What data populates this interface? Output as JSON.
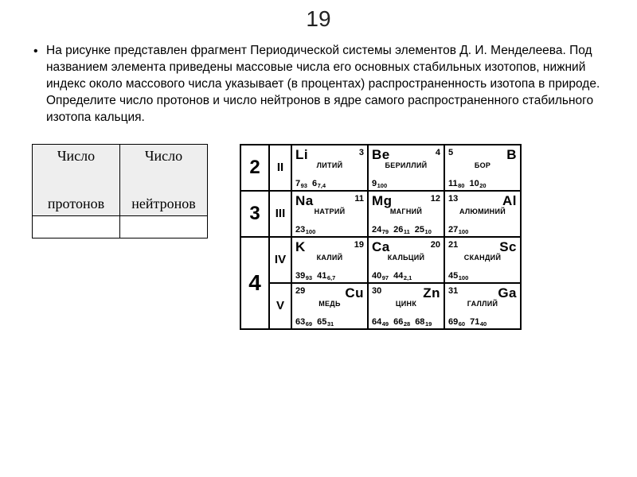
{
  "title": "19",
  "question": "На рисунке представлен фрагмент Периодической системы элементов Д. И. Менделеева. Под названием элемента приведены массовые числа его основных стабильных изотопов, нижний индекс около массового числа указывает (в процентах) распространенность изотопа в природе. Определите число протонов и число нейтронов в ядре самого распространенного стабильного изотопа кальция.",
  "answer_table": {
    "col1_top": "Число",
    "col1_bottom": "протонов",
    "col2_top": "Число",
    "col2_bottom": "нейтронов",
    "val1": "",
    "val2": ""
  },
  "ptable": {
    "rows": [
      {
        "period": "2",
        "subgroup": "II",
        "els": [
          {
            "sym": "Li",
            "z": "3",
            "name": "ЛИТИЙ",
            "iso": [
              {
                "m": "7",
                "a": "93"
              },
              {
                "m": "6",
                "a": "7,4"
              }
            ]
          },
          {
            "sym": "Be",
            "z": "4",
            "name": "БЕРИЛЛИЙ",
            "iso": [
              {
                "m": "9",
                "a": "100"
              }
            ]
          },
          {
            "sym": "B",
            "z": "5",
            "name": "БОР",
            "iso": [
              {
                "m": "11",
                "a": "80"
              },
              {
                "m": "10",
                "a": "20"
              }
            ],
            "zleft": true
          }
        ]
      },
      {
        "period": "3",
        "subgroup": "III",
        "els": [
          {
            "sym": "Na",
            "z": "11",
            "name": "НАТРИЙ",
            "iso": [
              {
                "m": "23",
                "a": "100"
              }
            ]
          },
          {
            "sym": "Mg",
            "z": "12",
            "name": "МАГНИЙ",
            "iso": [
              {
                "m": "24",
                "a": "79"
              },
              {
                "m": "26",
                "a": "11"
              },
              {
                "m": "25",
                "a": "10"
              }
            ]
          },
          {
            "sym": "Al",
            "z": "13",
            "name": "АЛЮМИНИЙ",
            "iso": [
              {
                "m": "27",
                "a": "100"
              }
            ],
            "zleft": true
          }
        ]
      },
      {
        "period": "4",
        "subgroup": "IV",
        "els": [
          {
            "sym": "K",
            "z": "19",
            "name": "КАЛИЙ",
            "iso": [
              {
                "m": "39",
                "a": "93"
              },
              {
                "m": "41",
                "a": "6,7"
              }
            ]
          },
          {
            "sym": "Ca",
            "z": "20",
            "name": "КАЛЬЦИЙ",
            "iso": [
              {
                "m": "40",
                "a": "97"
              },
              {
                "m": "44",
                "a": "2,1"
              }
            ]
          },
          {
            "sym": "Sc",
            "z": "21",
            "name": "СКАНДИЙ",
            "iso": [
              {
                "m": "45",
                "a": "100"
              }
            ],
            "zleft": true
          }
        ]
      },
      {
        "period": "4b",
        "subgroup": "V",
        "els": [
          {
            "sym": "Cu",
            "z": "29",
            "name": "МЕДЬ",
            "iso": [
              {
                "m": "63",
                "a": "69"
              },
              {
                "m": "65",
                "a": "31"
              }
            ],
            "zleft": true
          },
          {
            "sym": "Zn",
            "z": "30",
            "name": "ЦИНК",
            "iso": [
              {
                "m": "64",
                "a": "49"
              },
              {
                "m": "66",
                "a": "28"
              },
              {
                "m": "68",
                "a": "19"
              }
            ],
            "zleft": true
          },
          {
            "sym": "Ga",
            "z": "31",
            "name": "ГАЛЛИЙ",
            "iso": [
              {
                "m": "69",
                "a": "60"
              },
              {
                "m": "71",
                "a": "40"
              }
            ],
            "zleft": true
          }
        ]
      }
    ]
  }
}
